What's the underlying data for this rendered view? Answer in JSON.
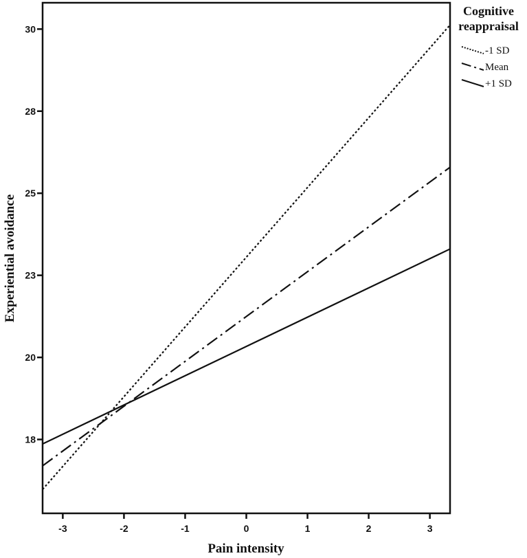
{
  "chart_data": {
    "type": "line",
    "title": "",
    "xlabel": "Pain intensity",
    "ylabel": "Experiential avoidance",
    "xlim": [
      -3.33,
      3.33
    ],
    "ylim": [
      15.84,
      30.77
    ],
    "x_ticks": [
      -3,
      -2,
      -1,
      0,
      1,
      2,
      3
    ],
    "x_tick_labels": [
      "-3",
      "-2",
      "-1",
      "0",
      "1",
      "2",
      "3"
    ],
    "y_ticks": [
      18,
      20.4,
      22.8,
      25.2,
      27.6,
      30
    ],
    "y_tick_labels": [
      "18",
      "20",
      "23",
      "25",
      "28",
      "30"
    ],
    "grid": false,
    "legend": {
      "title": "Cognitive reappraisal",
      "title_lines": [
        "Cognitive",
        "reappraisal"
      ],
      "placement": "right"
    },
    "series": [
      {
        "name": "-1 SD",
        "style": "dotted",
        "x": [
          -3.33,
          3.33
        ],
        "y": [
          16.54,
          30.12
        ]
      },
      {
        "name": "Mean",
        "style": "dashdot",
        "x": [
          -3.33,
          3.33
        ],
        "y": [
          17.23,
          25.96
        ]
      },
      {
        "name": "+1 SD",
        "style": "solid",
        "x": [
          -3.33,
          3.33
        ],
        "y": [
          17.87,
          23.57
        ]
      }
    ],
    "colors": {
      "line": "#111111",
      "background": "#ffffff"
    }
  }
}
